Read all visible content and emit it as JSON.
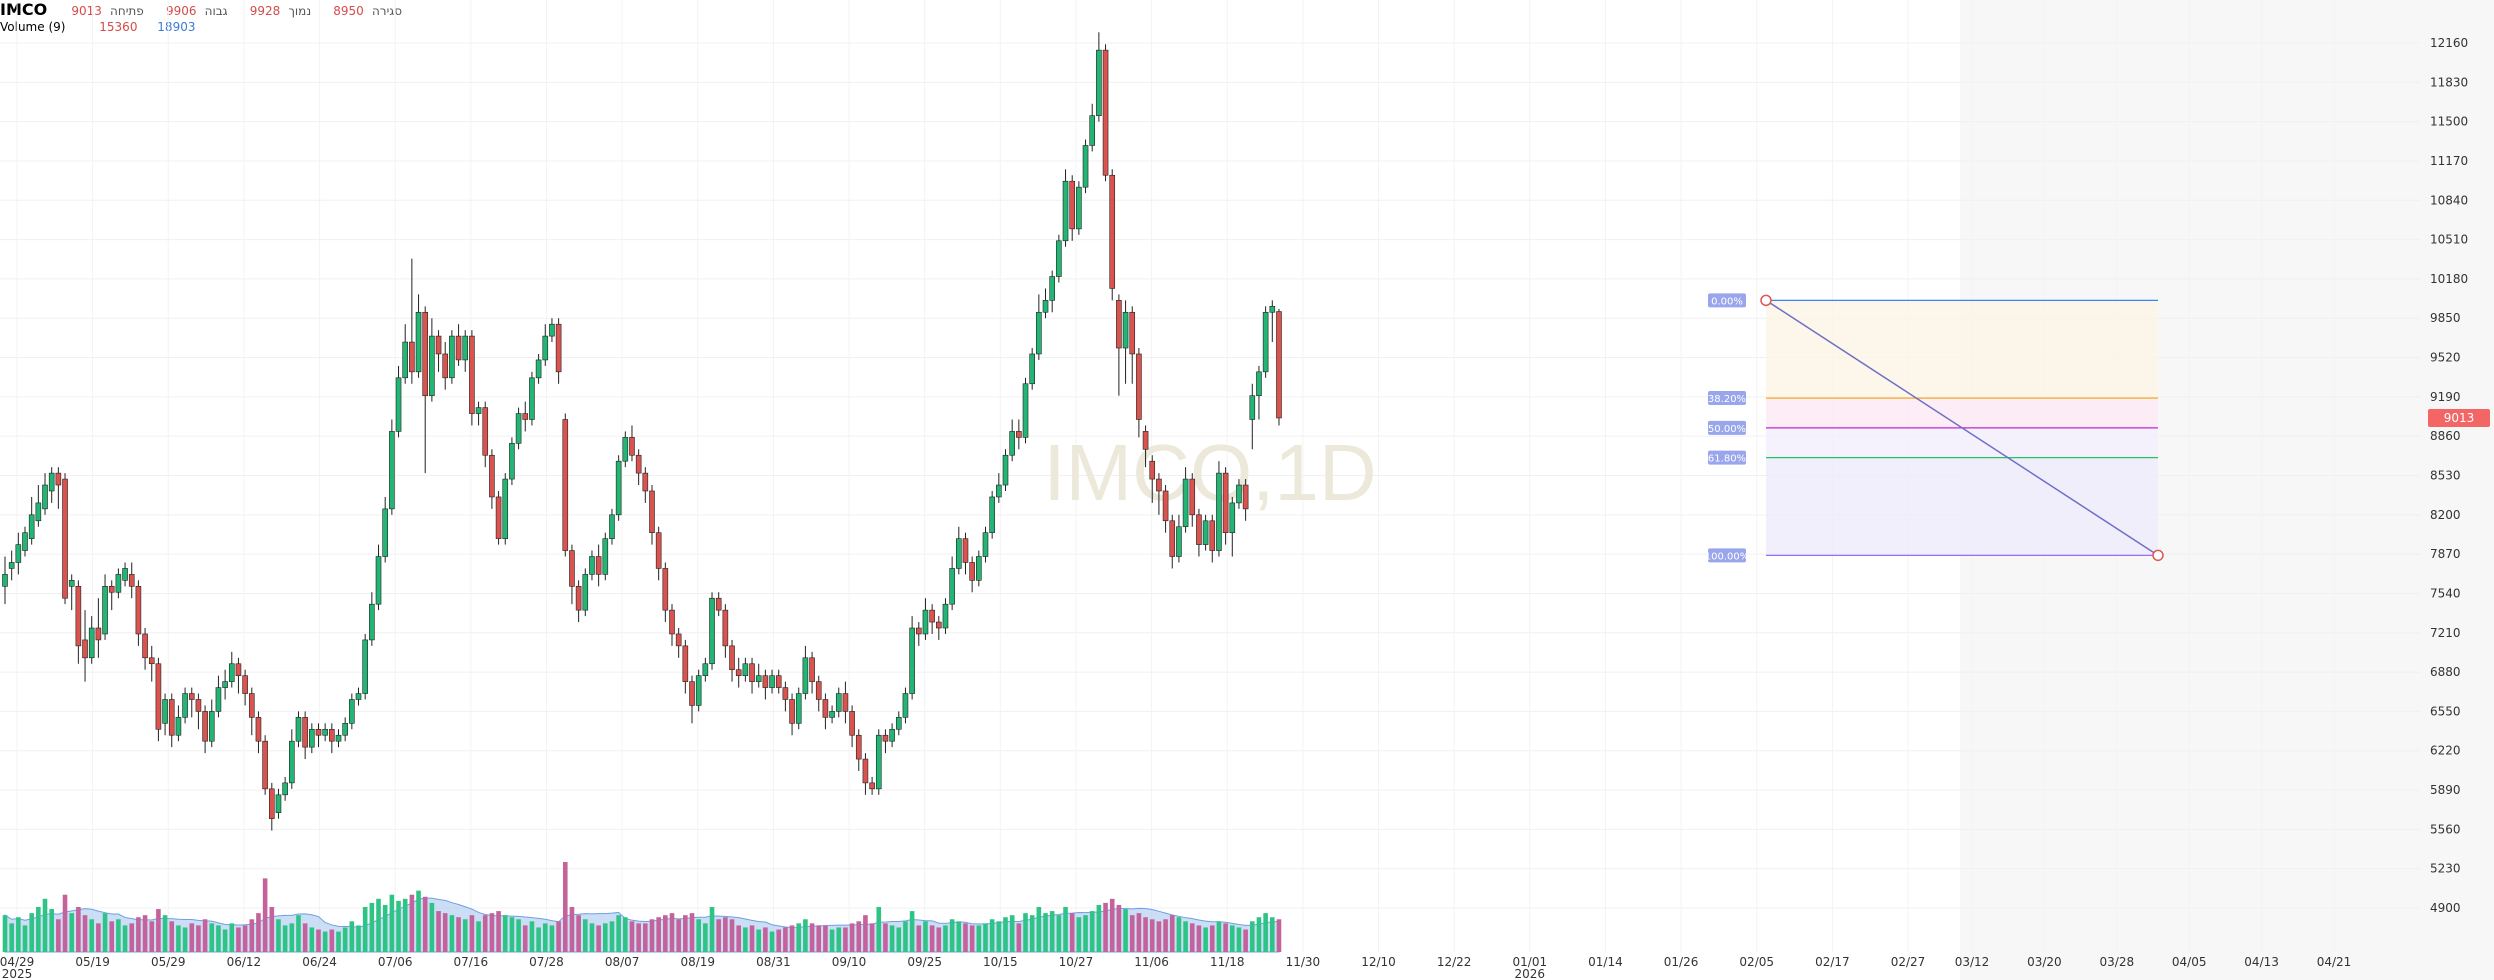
{
  "legend": {
    "symbol": "IMCO",
    "close_value": "9013",
    "close_label": "סגירה",
    "low_value": "8950",
    "low_label": "נמוך",
    "high_value": "9928",
    "high_label": "גבוה",
    "open_value": "9906",
    "open_label": "פתיחה",
    "volume_label": "Volume (9)",
    "volume_value_1": "15360",
    "volume_value_2": "18903"
  },
  "watermark": "IMCO,1D",
  "last_price_tag": "9013",
  "colors": {
    "up": "#22b573",
    "down": "#d9534f",
    "volume_up": "#2ec486",
    "volume_down": "#c4639b",
    "volume_ma_fill": "#a9c8f0",
    "fib_trend_line": "#6d6fc4",
    "price_tag_bg": "#f26666"
  },
  "chart_data": {
    "type": "candlestick",
    "price_axis": {
      "ticks": [
        12160,
        11830,
        11500,
        11170,
        10840,
        10510,
        10180,
        9850,
        9520,
        9190,
        8860,
        8530,
        8200,
        7870,
        7540,
        7210,
        6880,
        6550,
        6220,
        5890,
        5560,
        5230,
        4900
      ],
      "range": [
        4700,
        12400
      ]
    },
    "date_axis": {
      "labels": [
        "04/29",
        "05/19",
        "05/29",
        "06/12",
        "06/24",
        "07/06",
        "07/16",
        "07/28",
        "08/07",
        "08/19",
        "08/31",
        "09/10",
        "09/25",
        "10/15",
        "10/27",
        "11/06",
        "11/18",
        "11/30",
        "12/10",
        "12/22",
        "01/01",
        "01/14",
        "01/26",
        "02/05",
        "02/17",
        "02/27",
        "03/12",
        "03/20",
        "03/28",
        "04/05",
        "04/13",
        "04/21"
      ],
      "year_labels": [
        {
          "at": "04/29",
          "text": "2025"
        },
        {
          "at": "01/01",
          "text": "2026"
        }
      ]
    },
    "candles": [
      [
        7600,
        7700,
        7850,
        7450,
        9000
      ],
      [
        7750,
        7800,
        7900,
        7650,
        7000
      ],
      [
        7800,
        7950,
        8050,
        7700,
        8500
      ],
      [
        7900,
        8050,
        8100,
        7850,
        6500
      ],
      [
        8000,
        8200,
        8350,
        7950,
        9500
      ],
      [
        8150,
        8300,
        8450,
        8100,
        11000
      ],
      [
        8250,
        8450,
        8550,
        8200,
        13000
      ],
      [
        8400,
        8550,
        8600,
        8300,
        10500
      ],
      [
        8550,
        8450,
        8600,
        8250,
        8000
      ],
      [
        8500,
        7500,
        8550,
        7450,
        14000
      ],
      [
        7600,
        7650,
        7700,
        7400,
        9500
      ],
      [
        7600,
        7100,
        7650,
        6950,
        11000
      ],
      [
        7150,
        7000,
        7400,
        6800,
        9000
      ],
      [
        7000,
        7250,
        7350,
        6950,
        8000
      ],
      [
        7250,
        7150,
        7500,
        7000,
        7000
      ],
      [
        7200,
        7600,
        7700,
        7150,
        9500
      ],
      [
        7600,
        7550,
        7650,
        7400,
        7500
      ],
      [
        7550,
        7700,
        7750,
        7500,
        8000
      ],
      [
        7650,
        7750,
        7800,
        7600,
        6500
      ],
      [
        7700,
        7600,
        7800,
        7500,
        7000
      ],
      [
        7600,
        7200,
        7650,
        7100,
        8500
      ],
      [
        7200,
        7000,
        7250,
        6900,
        9000
      ],
      [
        7000,
        6950,
        7100,
        6800,
        7500
      ],
      [
        6950,
        6400,
        7000,
        6300,
        10500
      ],
      [
        6450,
        6650,
        6700,
        6350,
        9000
      ],
      [
        6650,
        6350,
        6700,
        6250,
        7500
      ],
      [
        6350,
        6500,
        6600,
        6300,
        6500
      ],
      [
        6500,
        6700,
        6750,
        6450,
        6000
      ],
      [
        6700,
        6650,
        6750,
        6500,
        7000
      ],
      [
        6650,
        6550,
        6700,
        6400,
        6500
      ],
      [
        6550,
        6300,
        6600,
        6200,
        8000
      ],
      [
        6300,
        6550,
        6650,
        6250,
        7000
      ],
      [
        6550,
        6750,
        6850,
        6500,
        6500
      ],
      [
        6750,
        6800,
        6900,
        6650,
        5500
      ],
      [
        6800,
        6950,
        7050,
        6750,
        7000
      ],
      [
        6950,
        6850,
        7000,
        6700,
        6000
      ],
      [
        6850,
        6700,
        6900,
        6600,
        6500
      ],
      [
        6700,
        6500,
        6750,
        6350,
        8000
      ],
      [
        6500,
        6300,
        6550,
        6200,
        9500
      ],
      [
        6300,
        5900,
        6350,
        5850,
        18000
      ],
      [
        5900,
        5650,
        5950,
        5550,
        11000
      ],
      [
        5700,
        5850,
        5900,
        5650,
        8000
      ],
      [
        5850,
        5950,
        6000,
        5800,
        6500
      ],
      [
        5950,
        6300,
        6400,
        5900,
        7000
      ],
      [
        6300,
        6500,
        6550,
        6250,
        9000
      ],
      [
        6500,
        6250,
        6550,
        6150,
        7000
      ],
      [
        6250,
        6400,
        6450,
        6200,
        6000
      ],
      [
        6400,
        6350,
        6450,
        6250,
        5500
      ],
      [
        6350,
        6400,
        6450,
        6300,
        5000
      ],
      [
        6400,
        6300,
        6450,
        6200,
        5500
      ],
      [
        6300,
        6350,
        6400,
        6250,
        5000
      ],
      [
        6350,
        6450,
        6500,
        6300,
        6000
      ],
      [
        6450,
        6650,
        6700,
        6400,
        7500
      ],
      [
        6650,
        6700,
        6750,
        6600,
        6500
      ],
      [
        6700,
        7150,
        7200,
        6650,
        11000
      ],
      [
        7150,
        7450,
        7550,
        7100,
        12000
      ],
      [
        7450,
        7850,
        7950,
        7400,
        13000
      ],
      [
        7850,
        8250,
        8350,
        7800,
        11500
      ],
      [
        8250,
        8900,
        9000,
        8200,
        14000
      ],
      [
        8900,
        9350,
        9450,
        8850,
        12500
      ],
      [
        9350,
        9650,
        9800,
        9300,
        13000
      ],
      [
        9650,
        9400,
        10350,
        9300,
        14000
      ],
      [
        9400,
        9900,
        10050,
        9350,
        15000
      ],
      [
        9900,
        9200,
        9950,
        8550,
        13500
      ],
      [
        9200,
        9700,
        9850,
        9150,
        12000
      ],
      [
        9700,
        9550,
        9750,
        9400,
        10000
      ],
      [
        9550,
        9350,
        9650,
        9250,
        9500
      ],
      [
        9350,
        9700,
        9750,
        9300,
        9000
      ],
      [
        9700,
        9500,
        9800,
        9450,
        8500
      ],
      [
        9500,
        9700,
        9750,
        9400,
        8000
      ],
      [
        9700,
        9050,
        9750,
        8950,
        9000
      ],
      [
        9050,
        9100,
        9150,
        8950,
        7500
      ],
      [
        9100,
        8700,
        9150,
        8600,
        9000
      ],
      [
        8700,
        8350,
        8750,
        8250,
        9500
      ],
      [
        8350,
        8000,
        8400,
        7950,
        10000
      ],
      [
        8000,
        8500,
        8550,
        7950,
        9000
      ],
      [
        8500,
        8800,
        8850,
        8450,
        8500
      ],
      [
        8800,
        9050,
        9100,
        8750,
        8000
      ],
      [
        9050,
        9000,
        9150,
        8900,
        6500
      ],
      [
        9000,
        9350,
        9400,
        8950,
        7500
      ],
      [
        9350,
        9500,
        9550,
        9300,
        6000
      ],
      [
        9500,
        9700,
        9800,
        9450,
        7000
      ],
      [
        9700,
        9800,
        9850,
        9650,
        6500
      ],
      [
        9800,
        9400,
        9850,
        9300,
        7500
      ],
      [
        9000,
        7900,
        9050,
        7850,
        22000
      ],
      [
        7900,
        7600,
        7950,
        7450,
        11000
      ],
      [
        7600,
        7400,
        7650,
        7300,
        9000
      ],
      [
        7400,
        7700,
        7750,
        7350,
        8000
      ],
      [
        7700,
        7850,
        7900,
        7650,
        7000
      ],
      [
        7850,
        7700,
        7950,
        7600,
        6500
      ],
      [
        7700,
        8000,
        8050,
        7650,
        7000
      ],
      [
        8000,
        8200,
        8250,
        7950,
        7500
      ],
      [
        8200,
        8650,
        8700,
        8150,
        9000
      ],
      [
        8650,
        8850,
        8900,
        8600,
        8500
      ],
      [
        8850,
        8700,
        8950,
        8650,
        7500
      ],
      [
        8700,
        8550,
        8750,
        8450,
        7000
      ],
      [
        8550,
        8400,
        8600,
        8300,
        7000
      ],
      [
        8400,
        8050,
        8450,
        7950,
        8000
      ],
      [
        8050,
        7750,
        8100,
        7650,
        8500
      ],
      [
        7750,
        7400,
        7800,
        7300,
        9000
      ],
      [
        7400,
        7200,
        7450,
        7100,
        9500
      ],
      [
        7200,
        7100,
        7250,
        7000,
        8000
      ],
      [
        7100,
        6800,
        7150,
        6700,
        9000
      ],
      [
        6800,
        6600,
        6850,
        6450,
        9500
      ],
      [
        6600,
        6850,
        6900,
        6550,
        8000
      ],
      [
        6850,
        6950,
        7000,
        6800,
        7000
      ],
      [
        6950,
        7500,
        7550,
        6900,
        11000
      ],
      [
        7500,
        7400,
        7550,
        7350,
        8000
      ],
      [
        7400,
        7100,
        7450,
        7000,
        8500
      ],
      [
        7100,
        6900,
        7150,
        6800,
        8000
      ],
      [
        6900,
        6850,
        7000,
        6750,
        6500
      ],
      [
        6850,
        6950,
        7000,
        6800,
        6000
      ],
      [
        6950,
        6800,
        7000,
        6700,
        6500
      ],
      [
        6800,
        6850,
        6950,
        6750,
        5500
      ],
      [
        6850,
        6750,
        6900,
        6650,
        6000
      ],
      [
        6750,
        6850,
        6900,
        6700,
        5000
      ],
      [
        6850,
        6750,
        6900,
        6700,
        5500
      ],
      [
        6750,
        6650,
        6800,
        6550,
        6000
      ],
      [
        6650,
        6450,
        6700,
        6350,
        6500
      ],
      [
        6450,
        6700,
        6750,
        6400,
        7000
      ],
      [
        6700,
        7000,
        7100,
        6650,
        8000
      ],
      [
        7000,
        6800,
        7050,
        6700,
        7000
      ],
      [
        6800,
        6650,
        6850,
        6550,
        6500
      ],
      [
        6650,
        6500,
        6700,
        6400,
        6500
      ],
      [
        6500,
        6550,
        6600,
        6450,
        5500
      ],
      [
        6550,
        6700,
        6750,
        6500,
        6000
      ],
      [
        6700,
        6550,
        6800,
        6450,
        6000
      ],
      [
        6550,
        6350,
        6600,
        6250,
        7000
      ],
      [
        6350,
        6150,
        6400,
        6050,
        7500
      ],
      [
        6150,
        5950,
        6200,
        5850,
        9000
      ],
      [
        5950,
        5900,
        6000,
        5850,
        7000
      ],
      [
        5900,
        6350,
        6400,
        5850,
        11000
      ],
      [
        6350,
        6300,
        6400,
        6200,
        7000
      ],
      [
        6300,
        6400,
        6450,
        6250,
        6500
      ],
      [
        6400,
        6500,
        6550,
        6350,
        6000
      ],
      [
        6500,
        6700,
        6750,
        6450,
        7500
      ],
      [
        6700,
        7250,
        7350,
        6650,
        10000
      ],
      [
        7250,
        7200,
        7300,
        7100,
        6500
      ],
      [
        7200,
        7400,
        7500,
        7150,
        7500
      ],
      [
        7400,
        7300,
        7450,
        7200,
        6500
      ],
      [
        7300,
        7250,
        7350,
        7150,
        6000
      ],
      [
        7250,
        7450,
        7500,
        7200,
        6500
      ],
      [
        7450,
        7750,
        7850,
        7400,
        8000
      ],
      [
        7750,
        8000,
        8100,
        7700,
        7500
      ],
      [
        8000,
        7800,
        8050,
        7700,
        7000
      ],
      [
        7800,
        7650,
        7850,
        7550,
        6500
      ],
      [
        7650,
        7850,
        7900,
        7600,
        6500
      ],
      [
        7850,
        8050,
        8100,
        7800,
        7000
      ],
      [
        8050,
        8350,
        8400,
        8000,
        8000
      ],
      [
        8350,
        8450,
        8550,
        8300,
        7500
      ],
      [
        8450,
        8700,
        8750,
        8400,
        8500
      ],
      [
        8700,
        8900,
        9000,
        8650,
        9000
      ],
      [
        8900,
        8850,
        9000,
        8750,
        7000
      ],
      [
        8850,
        9300,
        9350,
        8800,
        9500
      ],
      [
        9300,
        9550,
        9600,
        9250,
        9000
      ],
      [
        9550,
        9900,
        10050,
        9500,
        11000
      ],
      [
        9900,
        10000,
        10100,
        9850,
        9500
      ],
      [
        10000,
        10200,
        10250,
        9900,
        10000
      ],
      [
        10200,
        10500,
        10550,
        10150,
        9000
      ],
      [
        10500,
        11000,
        11100,
        10450,
        11000
      ],
      [
        11000,
        10600,
        11050,
        10500,
        9500
      ],
      [
        10600,
        10950,
        11000,
        10550,
        8500
      ],
      [
        10950,
        11300,
        11350,
        10900,
        9000
      ],
      [
        11300,
        11550,
        11650,
        11250,
        10000
      ],
      [
        11550,
        12100,
        12250,
        11500,
        11500
      ],
      [
        12100,
        11050,
        12150,
        11000,
        12000
      ],
      [
        11050,
        10100,
        11100,
        10000,
        13000
      ],
      [
        10000,
        9600,
        10050,
        9200,
        11500
      ],
      [
        9600,
        9900,
        10000,
        9300,
        10500
      ],
      [
        9900,
        9550,
        9950,
        9300,
        9000
      ],
      [
        9550,
        9000,
        9600,
        8850,
        9500
      ],
      [
        8900,
        8750,
        8950,
        8600,
        8500
      ],
      [
        8650,
        8500,
        8700,
        8300,
        8000
      ],
      [
        8500,
        8400,
        8550,
        8200,
        7500
      ],
      [
        8400,
        8150,
        8450,
        8050,
        8000
      ],
      [
        8150,
        7850,
        8200,
        7750,
        9000
      ],
      [
        7850,
        8100,
        8200,
        7800,
        8500
      ],
      [
        8100,
        8500,
        8600,
        8050,
        7500
      ],
      [
        8500,
        8200,
        8550,
        8100,
        7000
      ],
      [
        8200,
        7950,
        8250,
        7850,
        6500
      ],
      [
        7950,
        8150,
        8200,
        7900,
        6000
      ],
      [
        8150,
        7900,
        8200,
        7800,
        6500
      ],
      [
        7900,
        8550,
        8650,
        7850,
        7500
      ],
      [
        8550,
        8050,
        8600,
        7950,
        7000
      ],
      [
        8050,
        8300,
        8350,
        7850,
        6500
      ],
      [
        8300,
        8450,
        8500,
        8250,
        6000
      ],
      [
        8450,
        8250,
        8500,
        8150,
        5500
      ],
      [
        9000,
        9200,
        9300,
        8750,
        7500
      ],
      [
        9200,
        9400,
        9450,
        9000,
        8500
      ],
      [
        9400,
        9900,
        9950,
        9350,
        9500
      ],
      [
        9900,
        9950,
        10000,
        9650,
        8500
      ],
      [
        9906,
        9013,
        9928,
        8950,
        8000
      ]
    ]
  },
  "fibonacci": {
    "levels": [
      {
        "label": "0.00%",
        "price": 10000,
        "color": "#3b82f6"
      },
      {
        "label": "38.20%",
        "price": 9180,
        "color": "#f59e0b"
      },
      {
        "label": "50.00%",
        "price": 8930,
        "color": "#c026d3"
      },
      {
        "label": "61.80%",
        "price": 8680,
        "color": "#22c55e"
      },
      {
        "label": "100.00%",
        "price": 7860,
        "color": "#8b5cf6"
      }
    ],
    "start_price": 10000,
    "end_price": 7860
  }
}
